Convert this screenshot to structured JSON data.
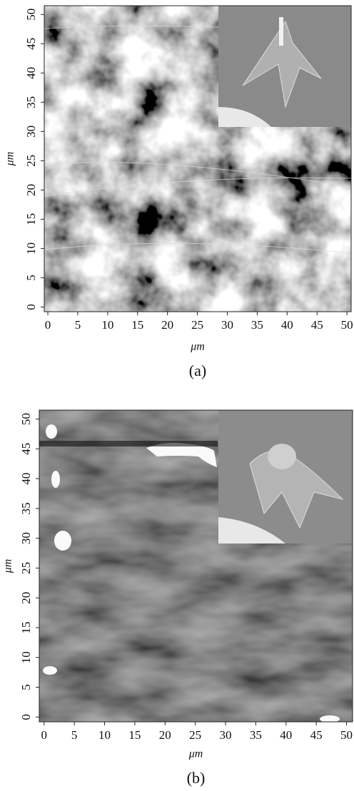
{
  "panels": [
    {
      "xticks": [
        0,
        5,
        10,
        15,
        20,
        25,
        30,
        35,
        40,
        45,
        50
      ],
      "yticks": [
        0,
        5,
        10,
        15,
        20,
        25,
        30,
        35,
        40,
        45,
        50
      ],
      "xlim": [
        -0.6,
        50.7
      ],
      "ylim": [
        -0.8,
        51.5
      ],
      "x_label": "μm",
      "y_label": "μm",
      "caption": "(a)"
    },
    {
      "xticks": [
        0,
        5,
        10,
        15,
        20,
        25,
        30,
        35,
        40,
        45,
        50
      ],
      "yticks": [
        0,
        5,
        10,
        15,
        20,
        25,
        30,
        35,
        40,
        45,
        50
      ],
      "xlim": [
        -0.8,
        51.0
      ],
      "ylim": [
        -0.8,
        51.5
      ],
      "x_label": "μm",
      "y_label": "μm",
      "caption": "(b)"
    }
  ]
}
